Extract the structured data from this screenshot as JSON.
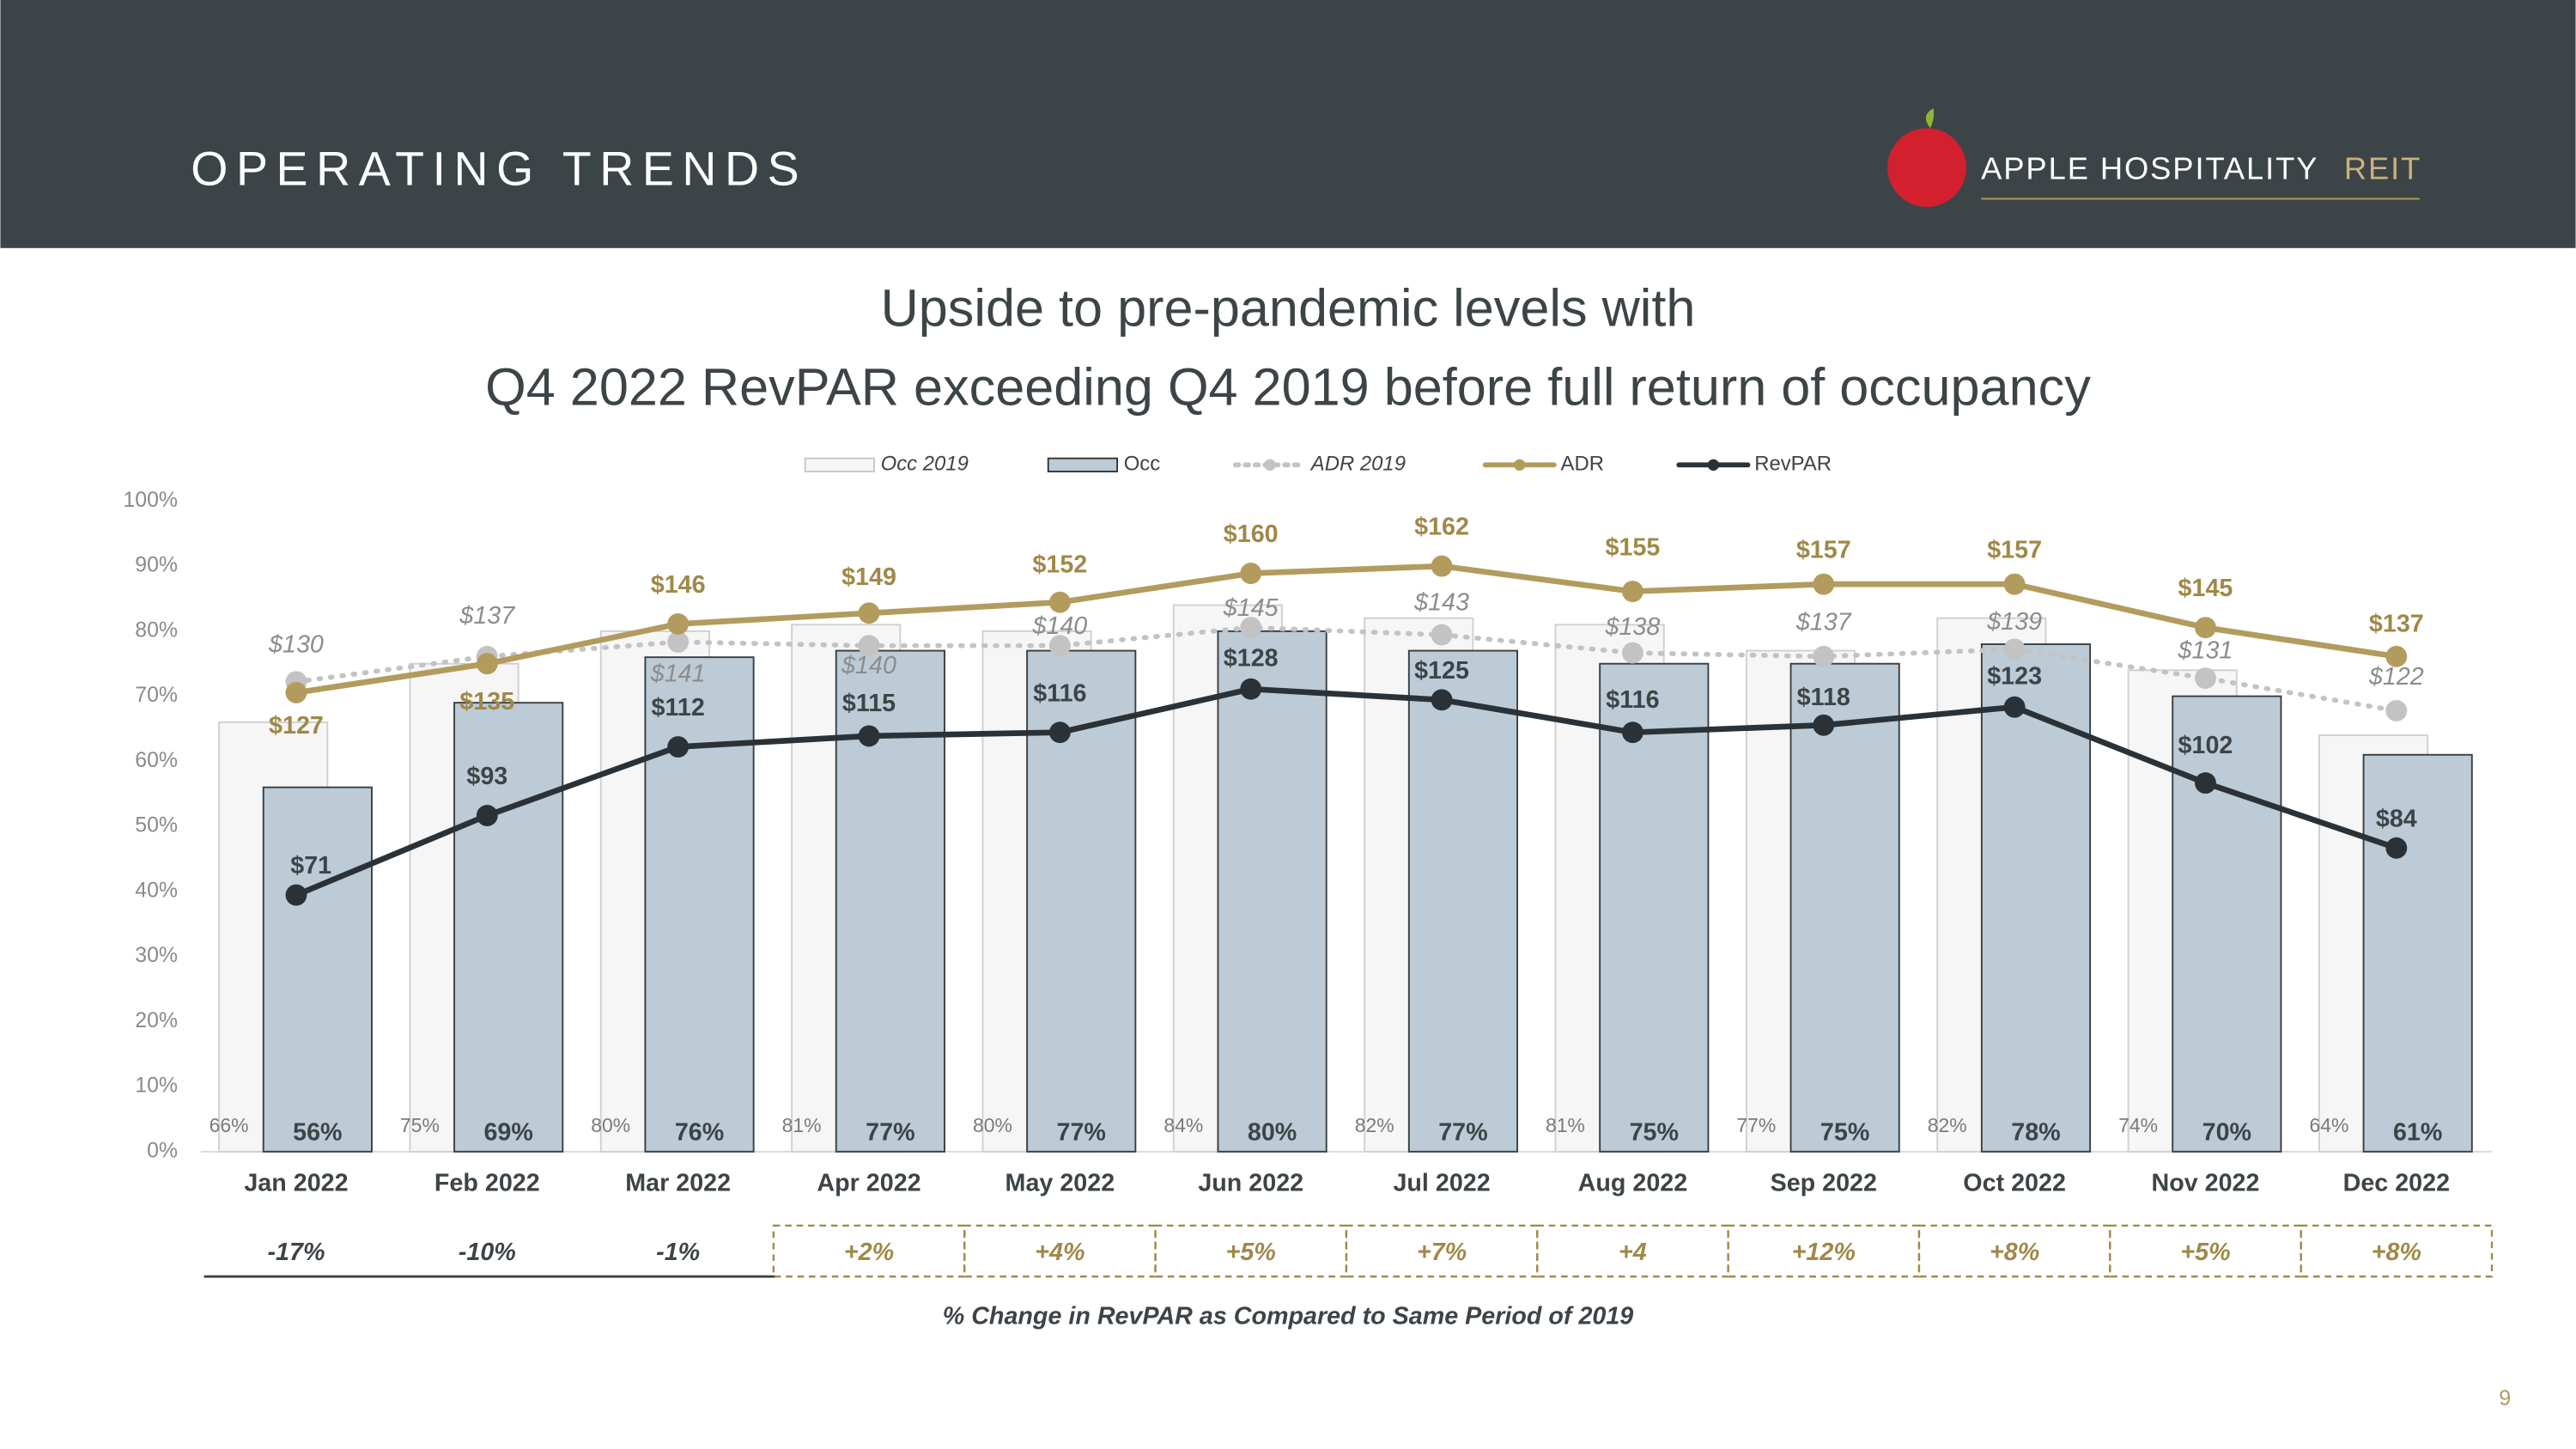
{
  "header": {
    "title": "OPERATING TRENDS",
    "logo_name": "APPLE HOSPITALITY",
    "logo_suffix": "REIT"
  },
  "chart_data": {
    "type": "bar",
    "title": [
      "Upside to pre-pandemic levels with",
      "Q4 2022 RevPAR exceeding Q4 2019 before full return of occupancy"
    ],
    "categories": [
      "Jan 2022",
      "Feb 2022",
      "Mar 2022",
      "Apr 2022",
      "May 2022",
      "Jun 2022",
      "Jul 2022",
      "Aug 2022",
      "Sep 2022",
      "Oct 2022",
      "Nov 2022",
      "Dec 2022"
    ],
    "ylim": [
      0,
      100
    ],
    "yticks": [
      {
        "value": 0,
        "label": "0%"
      },
      {
        "value": 10,
        "label": "10%"
      },
      {
        "value": 20,
        "label": "20%"
      },
      {
        "value": 30,
        "label": "30%"
      },
      {
        "value": 40,
        "label": "40%"
      },
      {
        "value": 50,
        "label": "50%"
      },
      {
        "value": 60,
        "label": "60%"
      },
      {
        "value": 70,
        "label": "70%"
      },
      {
        "value": 80,
        "label": "80%"
      },
      {
        "value": 90,
        "label": "90%"
      },
      {
        "value": 100,
        "label": "100%"
      }
    ],
    "y2lim": [
      0,
      180
    ],
    "series": [
      {
        "name": "Occ 2019",
        "type": "bar",
        "color": "#f6f6f6",
        "values": [
          66,
          75,
          80,
          81,
          80,
          84,
          82,
          81,
          77,
          82,
          74,
          64
        ],
        "value_labels": [
          "66%",
          "75%",
          "80%",
          "81%",
          "80%",
          "84%",
          "82%",
          "81%",
          "77%",
          "82%",
          "74%",
          "64%"
        ]
      },
      {
        "name": "Occ",
        "type": "bar",
        "color": "#bccbd6",
        "values": [
          56,
          69,
          76,
          77,
          77,
          80,
          77,
          75,
          75,
          78,
          70,
          61
        ],
        "value_labels": [
          "56%",
          "69%",
          "76%",
          "77%",
          "77%",
          "80%",
          "77%",
          "75%",
          "75%",
          "78%",
          "70%",
          "61%"
        ]
      },
      {
        "name": "ADR 2019",
        "type": "line",
        "style": "dotted",
        "axis": "y2",
        "color": "#c3c3c3",
        "values": [
          130,
          137,
          141,
          140,
          140,
          145,
          143,
          138,
          137,
          139,
          131,
          122
        ],
        "value_labels": [
          "$130",
          "$137",
          "$141",
          "$140",
          "$140",
          "$145",
          "$143",
          "$138",
          "$137",
          "$139",
          "$131",
          "$122"
        ]
      },
      {
        "name": "ADR",
        "type": "line",
        "axis": "y2",
        "color": "#b39b5e",
        "values": [
          127,
          135,
          146,
          149,
          152,
          160,
          162,
          155,
          157,
          157,
          145,
          137
        ],
        "value_labels": [
          "$127",
          "$135",
          "$146",
          "$149",
          "$152",
          "$160",
          "$162",
          "$155",
          "$157",
          "$157",
          "$145",
          "$137"
        ]
      },
      {
        "name": "RevPAR",
        "type": "line",
        "axis": "y2",
        "color": "#2b3237",
        "values": [
          71,
          93,
          112,
          115,
          116,
          128,
          125,
          116,
          118,
          123,
          102,
          84
        ],
        "value_labels": [
          "$71",
          "$93",
          "$112",
          "$115",
          "$116",
          "$128",
          "$125",
          "$116",
          "$118",
          "$123",
          "$102",
          "$84"
        ]
      }
    ]
  },
  "change_row": {
    "labels": [
      "-17%",
      "-10%",
      "-1%",
      "+2%",
      "+4%",
      "+5%",
      "+7%",
      "+4",
      "+12%",
      "+8%",
      "+5%",
      "+8%"
    ],
    "caption": "% Change in RevPAR as Compared to Same Period of 2019"
  },
  "page_number": "9"
}
